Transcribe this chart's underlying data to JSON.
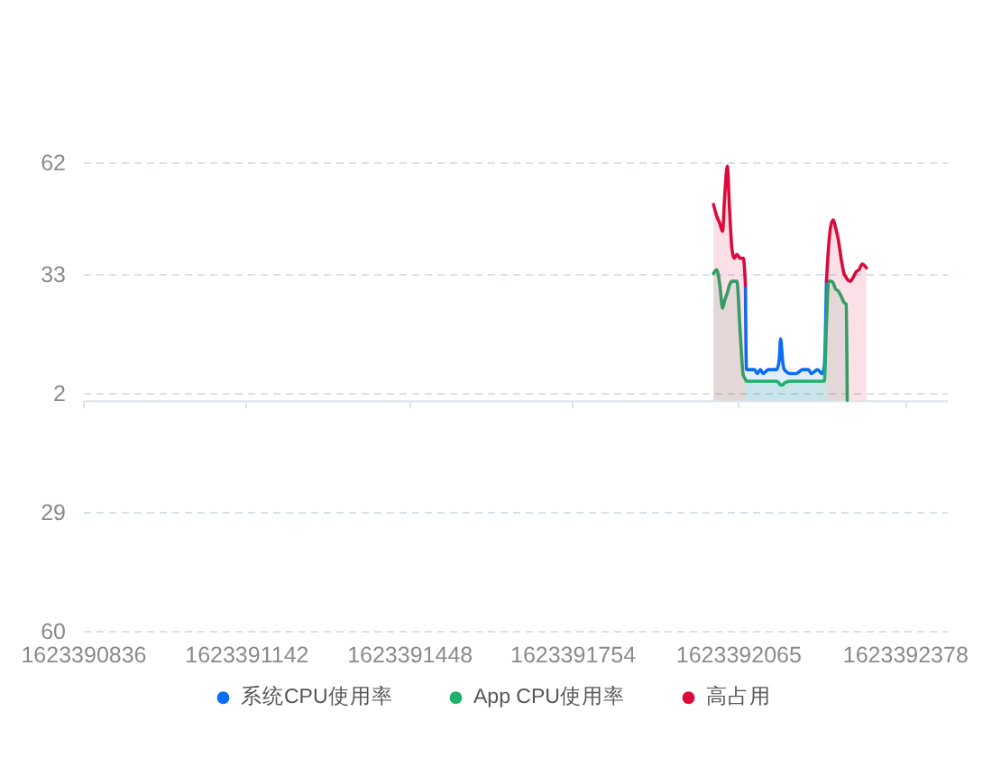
{
  "chart_data": {
    "type": "area",
    "x": [
      1623392019,
      1623392025,
      1623392031,
      1623392036,
      1623392040,
      1623392045,
      1623392049,
      1623392054,
      1623392058,
      1623392063,
      1623392069,
      1623392075,
      1623392079,
      1623392081,
      1623392090,
      1623392096,
      1623392101,
      1623392107,
      1623392112,
      1623392122,
      1623392129,
      1623392137,
      1623392142,
      1623392145,
      1623392149,
      1623392152,
      1623392163,
      1623392174,
      1623392186,
      1623392191,
      1623392197,
      1623392203,
      1623392214,
      1623392223,
      1623392227,
      1623392231,
      1623392235,
      1623392240,
      1623392244,
      1623392248,
      1623392253,
      1623392259,
      1623392264,
      1623392268,
      1623392270,
      1623392276,
      1623392281,
      1623392287,
      1623392292,
      1623392298,
      1623392306
    ],
    "xlim": [
      1623390836,
      1623392457
    ],
    "xticks": [
      1623390836,
      1623391142,
      1623391448,
      1623391754,
      1623392065,
      1623392378
    ],
    "ylim": [
      -60,
      62
    ],
    "yticks": [
      62,
      33,
      2,
      {
        "value": -29,
        "label": "29"
      },
      {
        "value": -60,
        "label": "60"
      }
    ],
    "grid": "y",
    "legend": "bottom",
    "series": [
      {
        "name": "系统CPU使用率",
        "color": "#0b6ef2",
        "values": [
          null,
          null,
          null,
          null,
          null,
          null,
          null,
          null,
          null,
          null,
          null,
          null,
          30,
          8,
          8,
          8,
          7,
          8,
          7,
          8,
          8,
          8,
          10,
          16,
          10,
          8,
          7,
          7,
          8,
          8,
          8,
          7,
          8,
          7,
          9,
          31,
          null,
          null,
          null,
          null,
          null,
          null,
          null,
          null,
          null,
          null,
          null,
          null,
          null,
          null,
          null
        ]
      },
      {
        "name": "App CPU使用率",
        "color": "#1fb06b",
        "values": [
          33,
          34,
          30,
          24,
          26,
          28,
          30,
          31,
          31,
          31,
          18,
          6.5,
          5.5,
          5,
          5,
          5,
          5,
          5,
          5,
          5,
          5,
          5,
          4.5,
          4,
          4,
          4.5,
          5,
          5,
          5,
          5,
          5,
          5,
          5,
          5,
          5,
          20,
          31,
          31,
          30.5,
          29,
          28.5,
          27,
          25.5,
          25,
          0,
          null,
          null,
          null,
          null,
          null,
          null
        ]
      },
      {
        "name": "高占用",
        "color": "#dc0a3c",
        "values": [
          51,
          48,
          46,
          44,
          53,
          61,
          50,
          39,
          37,
          38,
          37,
          37,
          30,
          null,
          null,
          null,
          null,
          null,
          null,
          null,
          null,
          null,
          null,
          null,
          null,
          null,
          null,
          null,
          null,
          null,
          null,
          null,
          null,
          null,
          null,
          31,
          40,
          46,
          47,
          45,
          42,
          36.5,
          33,
          32,
          31.5,
          31,
          32,
          33.5,
          34,
          35.5,
          34.5
        ]
      }
    ]
  }
}
